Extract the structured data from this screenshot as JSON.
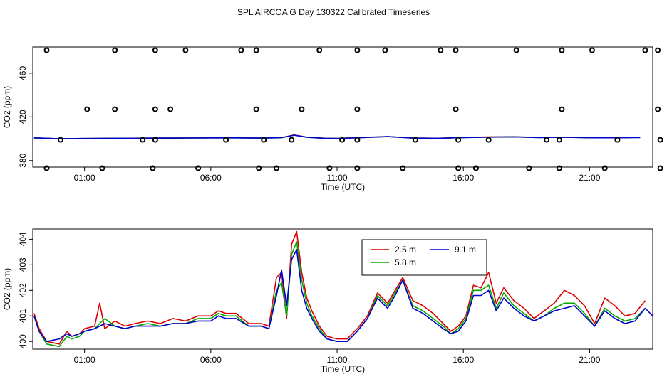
{
  "figure": {
    "title": "SPL AIRCOA G  Day 130322  Calibrated Timeseries"
  },
  "chart_data": [
    {
      "type": "line",
      "panel": "top",
      "xlabel": "Time (UTC)",
      "ylabel": "CO2 (ppm)",
      "x_unit": "hours",
      "xlim": [
        -1.05,
        23.5
      ],
      "ylim": [
        374,
        484
      ],
      "xticks": [
        1,
        6,
        11,
        16,
        21
      ],
      "xtick_labels": [
        "01:00",
        "06:00",
        "11:00",
        "16:00",
        "21:00"
      ],
      "yticks": [
        380,
        420,
        460
      ],
      "ytick_labels": [
        "380",
        "420",
        "460"
      ],
      "series": [
        {
          "name": "2.5 m",
          "color": "#dd0000",
          "x": [
            -1,
            0,
            1,
            2,
            3,
            4,
            5,
            6,
            7,
            8,
            8.8,
            9.3,
            9.8,
            10.5,
            11,
            12,
            13,
            14,
            15,
            16,
            17,
            18,
            19,
            20,
            21,
            22,
            23
          ],
          "y": [
            400.8,
            400,
            400.2,
            400.4,
            400.5,
            400.6,
            400.7,
            400.8,
            400.9,
            400.7,
            401,
            403.5,
            401.5,
            400.5,
            400.3,
            401.2,
            402,
            400.7,
            400.5,
            401.2,
            401.6,
            401.8,
            401.2,
            401.5,
            401,
            401,
            401.3
          ]
        },
        {
          "name": "5.8 m",
          "color": "#00aa00",
          "x": [
            -1,
            0,
            1,
            2,
            3,
            4,
            5,
            6,
            7,
            8,
            8.8,
            9.3,
            9.8,
            10.5,
            11,
            12,
            13,
            14,
            15,
            16,
            17,
            18,
            19,
            20,
            21,
            22,
            23
          ],
          "y": [
            400.8,
            400,
            400.2,
            400.4,
            400.5,
            400.6,
            400.7,
            400.8,
            400.8,
            400.6,
            400.9,
            403.3,
            401.4,
            400.4,
            400.2,
            401.1,
            401.9,
            400.6,
            400.4,
            401.1,
            401.5,
            401.7,
            401.1,
            401.4,
            400.9,
            400.9,
            401.2
          ]
        },
        {
          "name": "9.1 m",
          "color": "#0000cc",
          "x": [
            -1,
            0,
            1,
            2,
            3,
            4,
            5,
            6,
            7,
            8,
            8.8,
            9.3,
            9.8,
            10.5,
            11,
            12,
            13,
            14,
            15,
            16,
            17,
            18,
            19,
            20,
            21,
            22,
            23
          ],
          "y": [
            400.8,
            400,
            400.2,
            400.4,
            400.5,
            400.6,
            400.7,
            400.8,
            400.8,
            400.6,
            401,
            403.2,
            401.4,
            400.4,
            400.2,
            401.1,
            401.9,
            400.6,
            400.4,
            401.1,
            401.5,
            401.7,
            401.1,
            401.4,
            400.9,
            400.9,
            401.1
          ]
        }
      ],
      "calibration_points": {
        "marker": "open circle",
        "x": [
          -0.5,
          1.1,
          2.2,
          3.8,
          3.8,
          3.8,
          5.0,
          7.2,
          7.8,
          9.6,
          10.3,
          11.8,
          11.8,
          12.9,
          15.1,
          15.7,
          15.7,
          18.1,
          19.9,
          19.9,
          21.1,
          23.2,
          23.7,
          23.7,
          0.05,
          2.2,
          3.3,
          4.4,
          6.6,
          7.8,
          8.1,
          9.2,
          11.2,
          11.8,
          14.1,
          15.8,
          17.0,
          19.3,
          19.8,
          22.1,
          23.8,
          -0.5,
          1.7,
          3.7,
          5.5,
          7.9,
          8.6,
          10.7,
          11.8,
          13.6,
          15.8,
          16.5,
          18.6,
          19.8,
          21.6,
          23.8
        ],
        "y": [
          481,
          427,
          481,
          481,
          427,
          399,
          481,
          481,
          481,
          427,
          481,
          481,
          427,
          481,
          481,
          481,
          427,
          481,
          481,
          427,
          481,
          481,
          481,
          427,
          399,
          427,
          399,
          427,
          399,
          427,
          399,
          399,
          399,
          399,
          399,
          399,
          399,
          399,
          399,
          399,
          399,
          373,
          373,
          373,
          373,
          373,
          373,
          373,
          373,
          373,
          373,
          373,
          373,
          373,
          373,
          373
        ]
      }
    },
    {
      "type": "line",
      "panel": "bottom",
      "xlabel": "Time (UTC)",
      "ylabel": "CO2 (ppm)",
      "x_unit": "hours",
      "xlim": [
        -1.05,
        23.5
      ],
      "ylim": [
        399.7,
        404.4
      ],
      "xticks": [
        1,
        6,
        11,
        16,
        21
      ],
      "xtick_labels": [
        "01:00",
        "06:00",
        "11:00",
        "16:00",
        "21:00"
      ],
      "yticks": [
        400,
        401,
        402,
        403,
        404
      ],
      "ytick_labels": [
        "400",
        "401",
        "402",
        "403",
        "404"
      ],
      "legend": {
        "position": "top-center",
        "entries": [
          "2.5 m",
          "5.8 m",
          "9.1 m"
        ]
      },
      "series": [
        {
          "name": "2.5 m",
          "color": "#dd0000",
          "x": [
            -1,
            -0.8,
            -0.5,
            0,
            0.3,
            0.5,
            0.8,
            1,
            1.4,
            1.6,
            1.8,
            2.2,
            2.6,
            3,
            3.5,
            4,
            4.5,
            5,
            5.5,
            6,
            6.3,
            6.6,
            7,
            7.5,
            8,
            8.3,
            8.6,
            8.8,
            9.0,
            9.2,
            9.4,
            9.6,
            9.8,
            10.0,
            10.3,
            10.6,
            11,
            11.4,
            11.8,
            12.2,
            12.6,
            13,
            13.3,
            13.6,
            14,
            14.4,
            14.8,
            15.2,
            15.5,
            15.8,
            16.1,
            16.4,
            16.7,
            17.0,
            17.3,
            17.6,
            18,
            18.4,
            18.8,
            19.2,
            19.6,
            20,
            20.4,
            20.8,
            21.2,
            21.6,
            22,
            22.4,
            22.8,
            23.2
          ],
          "y": [
            401.1,
            400.5,
            400.0,
            399.9,
            400.4,
            400.2,
            400.3,
            400.5,
            400.6,
            401.5,
            400.5,
            400.8,
            400.6,
            400.7,
            400.8,
            400.7,
            400.9,
            400.8,
            401,
            401,
            401.2,
            401.1,
            401.1,
            400.7,
            400.7,
            400.6,
            402.5,
            402.7,
            400.9,
            403.8,
            404.3,
            402.7,
            401.7,
            401.2,
            400.6,
            400.2,
            400.1,
            400.1,
            400.5,
            401,
            401.9,
            401.5,
            402.0,
            402.5,
            401.6,
            401.4,
            401.1,
            400.7,
            400.4,
            400.6,
            401.0,
            402.2,
            402.1,
            402.7,
            401.5,
            402.1,
            401.6,
            401.3,
            400.9,
            401.2,
            401.5,
            402.0,
            401.8,
            401.4,
            400.7,
            401.7,
            401.4,
            401.0,
            401.1,
            401.6
          ]
        },
        {
          "name": "5.8 m",
          "color": "#00aa00",
          "x": [
            -1,
            -0.8,
            -0.5,
            0,
            0.3,
            0.5,
            0.8,
            1,
            1.4,
            1.6,
            1.8,
            2.2,
            2.6,
            3,
            3.5,
            4,
            4.5,
            5,
            5.5,
            6,
            6.3,
            6.6,
            7,
            7.5,
            8,
            8.3,
            8.6,
            8.8,
            9.0,
            9.2,
            9.4,
            9.6,
            9.8,
            10.0,
            10.3,
            10.6,
            11,
            11.4,
            11.8,
            12.2,
            12.6,
            13,
            13.3,
            13.6,
            14,
            14.4,
            14.8,
            15.2,
            15.5,
            15.8,
            16.1,
            16.4,
            16.7,
            17.0,
            17.3,
            17.6,
            18,
            18.4,
            18.8,
            19.2,
            19.6,
            20,
            20.4,
            20.8,
            21.2,
            21.6,
            22,
            22.4,
            22.8,
            23.2
          ],
          "y": [
            401.0,
            400.4,
            399.9,
            399.8,
            400.2,
            400.1,
            400.2,
            400.4,
            400.5,
            400.7,
            400.9,
            400.6,
            400.5,
            400.6,
            400.7,
            400.6,
            400.7,
            400.7,
            400.9,
            400.9,
            401.1,
            401.0,
            401.0,
            400.6,
            400.6,
            400.5,
            402.0,
            402.3,
            401.0,
            403.4,
            403.9,
            402.4,
            401.5,
            401.0,
            400.5,
            400.1,
            400.0,
            400.0,
            400.4,
            400.9,
            401.8,
            401.4,
            401.9,
            402.4,
            401.4,
            401.2,
            400.9,
            400.6,
            400.3,
            400.5,
            400.9,
            402.0,
            402.0,
            402.2,
            401.3,
            401.9,
            401.4,
            401.1,
            400.8,
            401.0,
            401.3,
            401.5,
            401.5,
            401.1,
            400.6,
            401.3,
            401.0,
            400.8,
            400.9,
            401.3
          ]
        },
        {
          "name": "9.1 m",
          "color": "#0000cc",
          "x": [
            -1,
            -0.8,
            -0.5,
            0,
            0.3,
            0.5,
            0.8,
            1,
            1.4,
            1.6,
            1.8,
            2.2,
            2.6,
            3,
            3.5,
            4,
            4.5,
            5,
            5.5,
            6,
            6.3,
            6.6,
            7,
            7.5,
            8,
            8.3,
            8.6,
            8.8,
            9.0,
            9.2,
            9.4,
            9.6,
            9.8,
            10.0,
            10.3,
            10.6,
            11,
            11.4,
            11.8,
            12.2,
            12.6,
            13,
            13.3,
            13.6,
            14,
            14.4,
            14.8,
            15.2,
            15.5,
            15.8,
            16.1,
            16.4,
            16.7,
            17.0,
            17.3,
            17.6,
            18,
            18.4,
            18.8,
            19.2,
            19.6,
            20,
            20.4,
            20.8,
            21.2,
            21.6,
            22,
            22.4,
            22.8,
            23.2,
            23.5
          ],
          "y": [
            401.0,
            400.4,
            400.0,
            400.1,
            400.3,
            400.2,
            400.3,
            400.4,
            400.5,
            400.6,
            400.7,
            400.6,
            400.5,
            400.6,
            400.6,
            400.6,
            400.7,
            400.7,
            400.8,
            400.8,
            401.0,
            400.9,
            400.9,
            400.6,
            400.6,
            400.5,
            401.8,
            402.8,
            401.4,
            403.2,
            403.6,
            402.0,
            401.3,
            400.9,
            400.4,
            400.1,
            400.0,
            400.0,
            400.4,
            400.9,
            401.7,
            401.3,
            401.8,
            402.4,
            401.3,
            401.1,
            400.8,
            400.5,
            400.3,
            400.4,
            400.8,
            401.8,
            401.8,
            402.0,
            401.2,
            401.7,
            401.3,
            401.0,
            400.8,
            401.0,
            401.2,
            401.3,
            401.4,
            401.0,
            400.6,
            401.2,
            400.9,
            400.7,
            400.8,
            401.3,
            401.0
          ]
        }
      ]
    }
  ]
}
